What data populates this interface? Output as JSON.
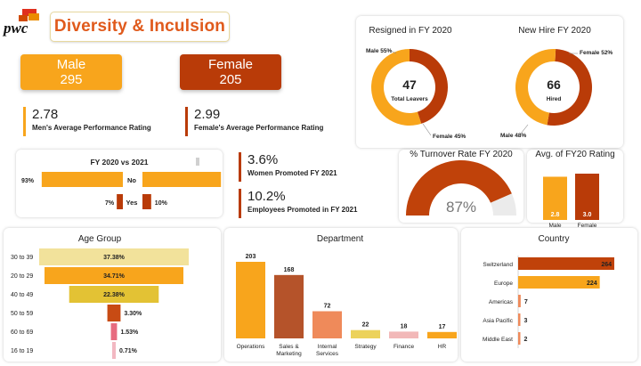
{
  "header": {
    "logo_text": "pwc",
    "title": "Diversity & Inculsion"
  },
  "colors": {
    "orange": "#f8a51c",
    "rust": "#b93b08",
    "male_card": "#f8a51c",
    "female_card": "#b93b08"
  },
  "kpi": {
    "male_label": "Male",
    "male_value": "295",
    "female_label": "Female",
    "female_value": "205"
  },
  "ratings": {
    "men_value": "2.78",
    "men_label": "Men's Average Performance Rating",
    "women_value": "2.99",
    "women_label": "Female's Average Performance Rating"
  },
  "promotions": {
    "women_value": "3.6%",
    "women_label": "Women Promoted FY 2021",
    "employees_value": "10.2%",
    "employees_label": "Employees Promoted in FY 2021"
  },
  "chart_data": [
    {
      "type": "bar",
      "id": "fy-compare",
      "title": "FY 2020 vs 2021",
      "categories": [
        "No",
        "Yes"
      ],
      "series": [
        {
          "values": [
            93,
            7
          ],
          "labels": [
            "93%",
            "7%"
          ]
        },
        {
          "values": [
            90,
            10
          ],
          "labels": [
            "90%",
            "10%"
          ]
        }
      ]
    },
    {
      "type": "pie",
      "id": "resigned",
      "title": "Resigned in FY 2020",
      "center_value": "47",
      "center_label": "Total Leavers",
      "slices": [
        {
          "name": "Male",
          "value": 55,
          "label": "Male 55%",
          "color": "#f8a51c"
        },
        {
          "name": "Female",
          "value": 45,
          "label": "Female 45%",
          "color": "#b93b08"
        }
      ]
    },
    {
      "type": "pie",
      "id": "new-hire",
      "title": "New Hire FY 2020",
      "center_value": "66",
      "center_label": "Hired",
      "slices": [
        {
          "name": "Female",
          "value": 52,
          "label": "Female 52%",
          "color": "#b93b08"
        },
        {
          "name": "Male",
          "value": 48,
          "label": "Male 48%",
          "color": "#f8a51c"
        }
      ]
    },
    {
      "type": "pie",
      "id": "turnover",
      "title": "% Turnover Rate FY 2020",
      "value": 87,
      "value_label": "87%"
    },
    {
      "type": "bar",
      "id": "avg-rating",
      "title": "Avg. of FY20 Rating",
      "categories": [
        "Male",
        "Female"
      ],
      "values": [
        2.8,
        3.0
      ],
      "labels": [
        "2.8",
        "3.0"
      ],
      "colors": [
        "#f8a51c",
        "#b93b08"
      ]
    },
    {
      "type": "bar",
      "id": "age-group",
      "title": "Age Group",
      "categories": [
        "30 to 39",
        "20 to 29",
        "40 to 49",
        "50 to 59",
        "60 to 69",
        "16 to 19"
      ],
      "values": [
        37.38,
        34.71,
        22.38,
        3.3,
        1.53,
        0.71
      ],
      "labels": [
        "37.38%",
        "34.71%",
        "22.38%",
        "3.30%",
        "1.53%",
        "0.71%"
      ],
      "colors": [
        "#f2e29b",
        "#f8a51c",
        "#e3c234",
        "#c84b14",
        "#e76b7f",
        "#f2b8c2"
      ]
    },
    {
      "type": "bar",
      "id": "department",
      "title": "Department",
      "categories": [
        "Operations",
        "Sales & Marketing",
        "Internal Services",
        "Strategy",
        "Finance",
        "HR"
      ],
      "category_lines": [
        [
          "Operations"
        ],
        [
          "Sales &",
          "Marketing"
        ],
        [
          "Internal",
          "Services"
        ],
        [
          "Strategy"
        ],
        [
          "Finance"
        ],
        [
          "HR"
        ]
      ],
      "values": [
        203,
        168,
        72,
        22,
        18,
        17
      ],
      "labels": [
        "203",
        "168",
        "72",
        "22",
        "18",
        "17"
      ],
      "colors": [
        "#f8a51c",
        "#b5532a",
        "#ef8a5a",
        "#ecd25b",
        "#f2b8b8",
        "#f8a51c"
      ]
    },
    {
      "type": "bar",
      "id": "country",
      "title": "Country",
      "categories": [
        "Switzerland",
        "Europe",
        "Americas",
        "Asia Pacific",
        "Middle East"
      ],
      "values": [
        264,
        224,
        7,
        3,
        2
      ],
      "labels": [
        "264",
        "224",
        "7",
        "3",
        "2"
      ],
      "colors": [
        "#c0420a",
        "#f8a51c",
        "#ef8a5a",
        "#ef8a5a",
        "#ef8a5a"
      ]
    }
  ]
}
